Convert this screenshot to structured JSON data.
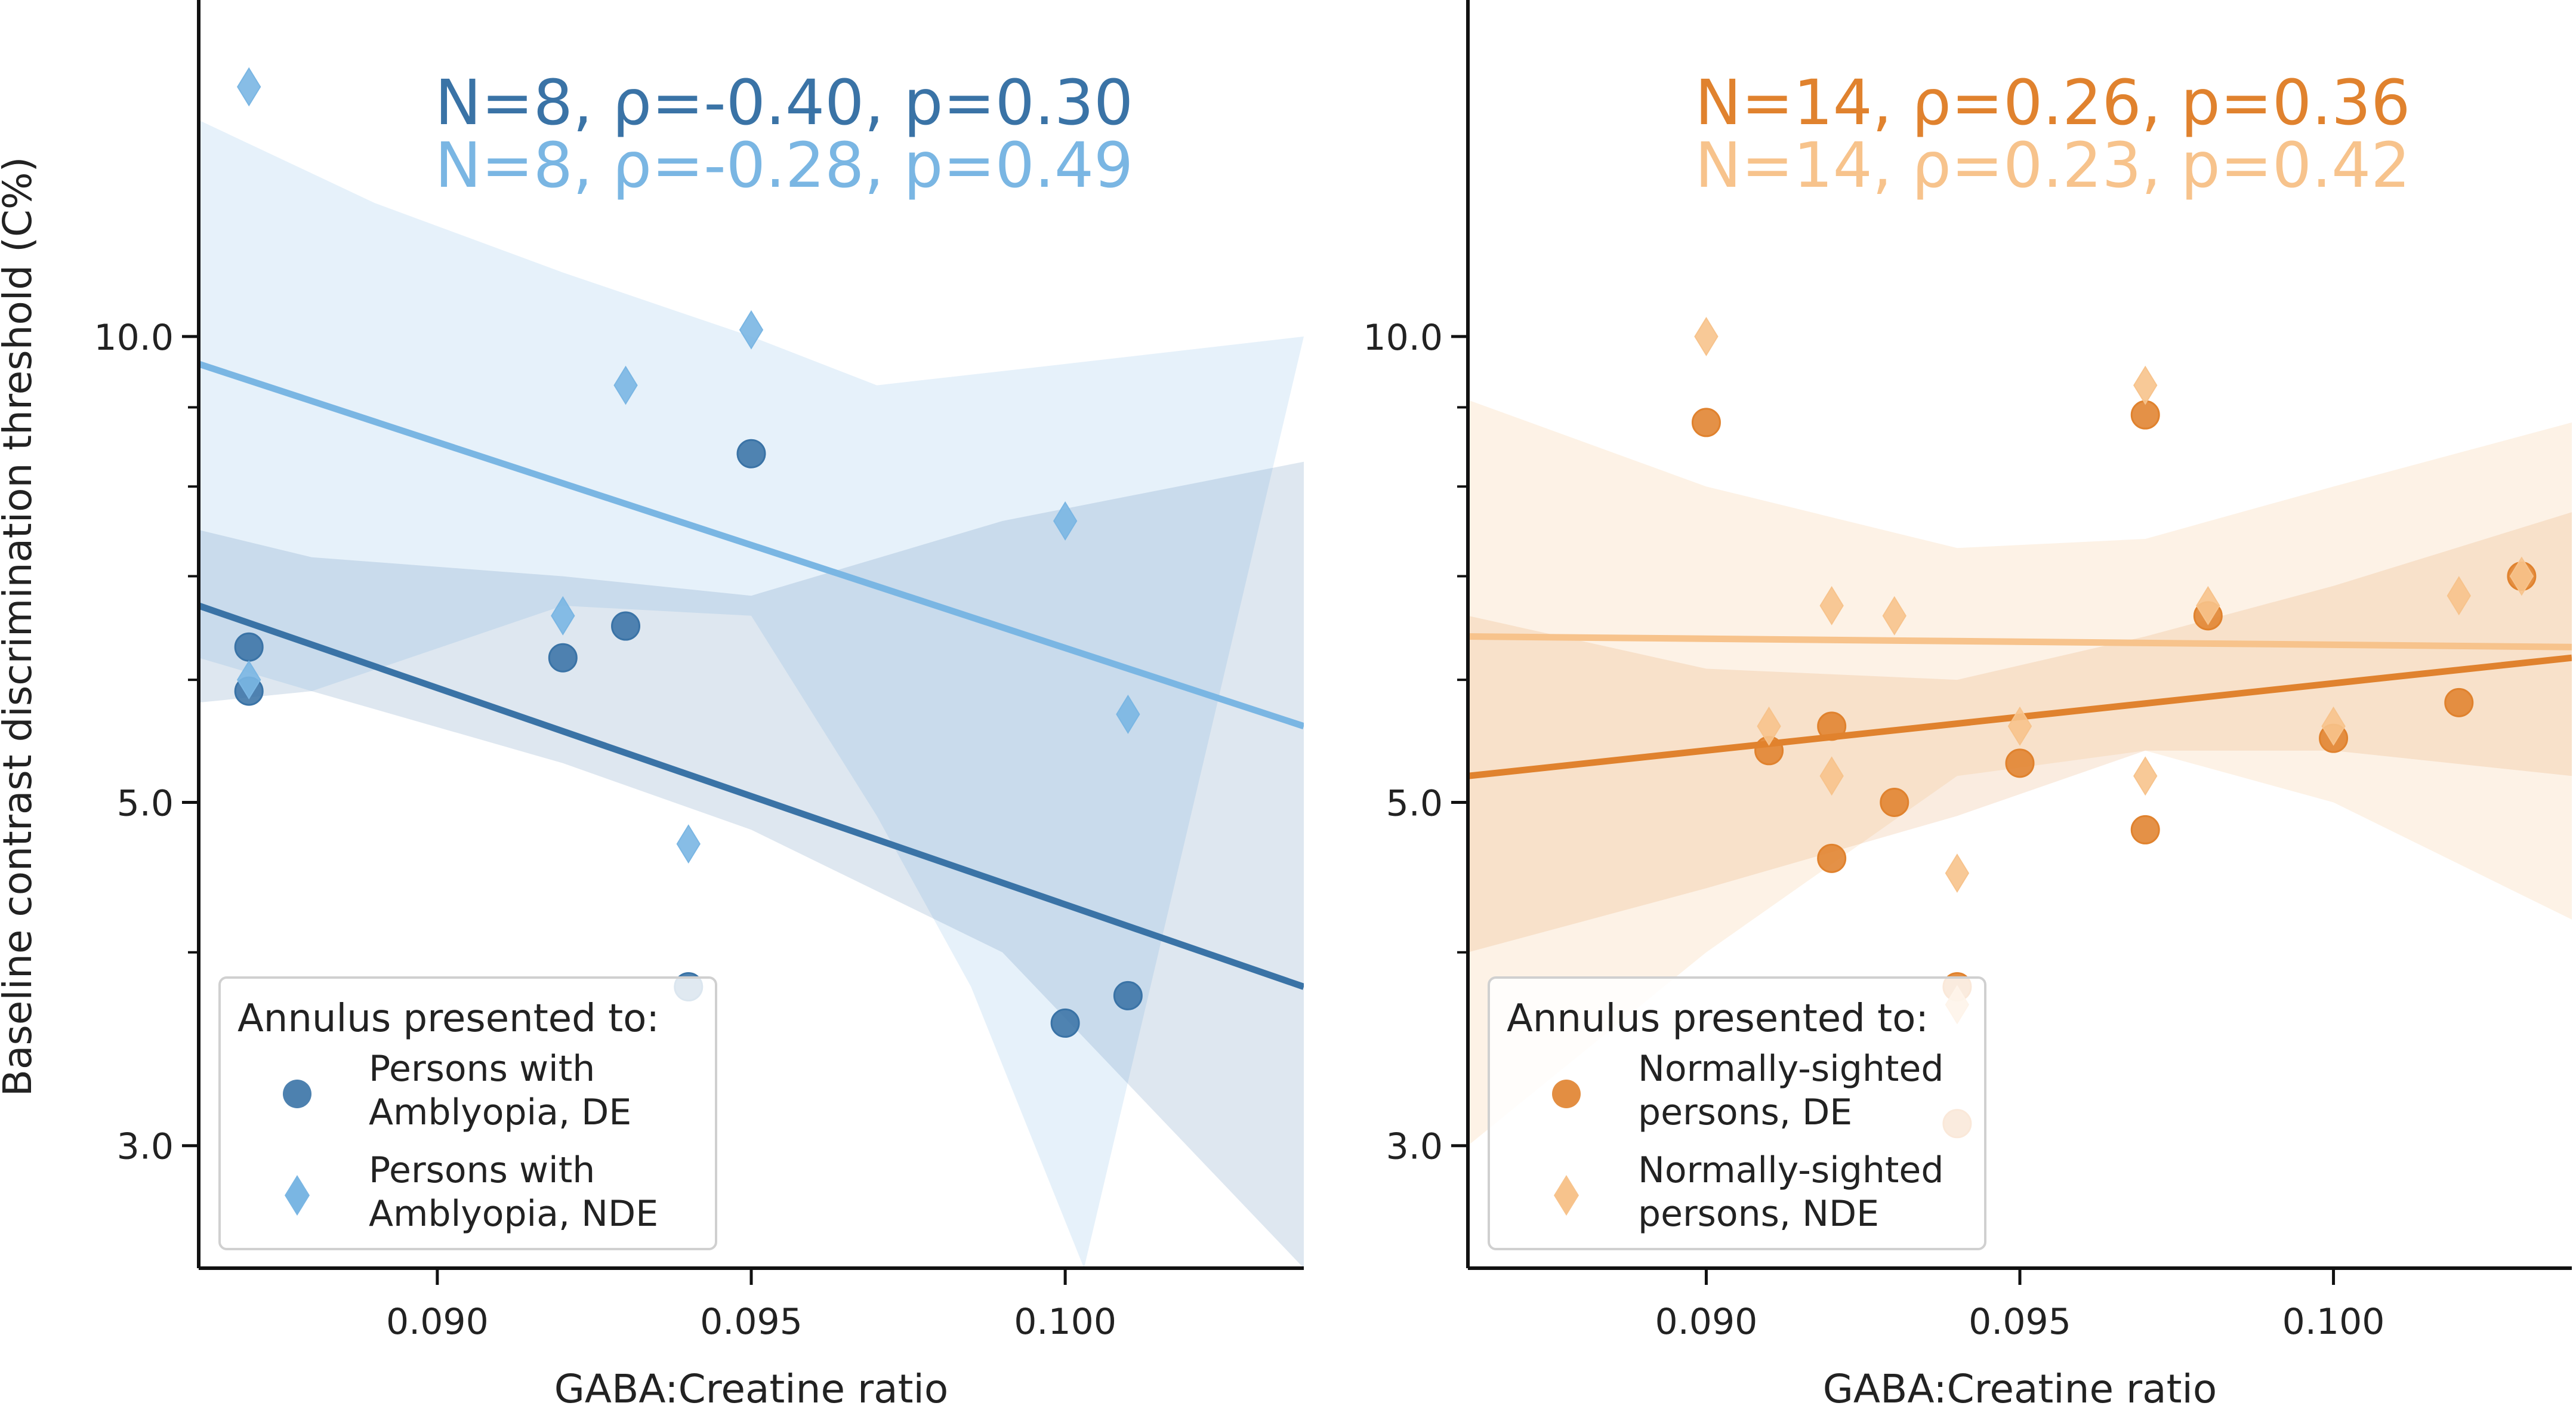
{
  "colors": {
    "de_left": "#3a73a6",
    "nde_left": "#7ab6e3",
    "de_right": "#e0822e",
    "nde_right": "#f7c38c",
    "axis": "#111111",
    "text": "#222222"
  },
  "figure": {
    "ylabel": "Baseline contrast discrimination threshold (C%)"
  },
  "chart_data": [
    {
      "type": "scatter",
      "id": "left",
      "xlabel": "GABA:Creatine ratio",
      "ylabel": "Baseline contrast discrimination threshold (C%)",
      "yscale": "log",
      "xlim": [
        0.0862,
        0.1038
      ],
      "ylim": [
        2.5,
        16.5
      ],
      "x_ticks": [
        0.09,
        0.095,
        0.1
      ],
      "x_tick_labels": [
        "0.090",
        "0.095",
        "0.100"
      ],
      "y_ticks": [
        3,
        5,
        10
      ],
      "y_tick_labels": [
        "3.0",
        "5.0",
        "10.0"
      ],
      "stats": [
        {
          "text": "N=8, ρ=-0.40, p=0.30",
          "series": "de"
        },
        {
          "text": "N=8, ρ=-0.28, p=0.49",
          "series": "nde"
        }
      ],
      "legend": {
        "title": "Annulus presented to:",
        "position": "lower-left",
        "entries": [
          {
            "series": "de",
            "marker": "circle",
            "lines": [
              "Persons with",
              "Amblyopia, DE"
            ]
          },
          {
            "series": "nde",
            "marker": "diamond",
            "lines": [
              "Persons with",
              "Amblyopia, NDE"
            ]
          }
        ]
      },
      "series": [
        {
          "name": "Persons with Amblyopia, DE",
          "key": "de",
          "marker": "circle",
          "x": [
            0.087,
            0.087,
            0.092,
            0.093,
            0.094,
            0.095,
            0.1,
            0.101
          ],
          "y": [
            6.3,
            5.9,
            6.2,
            6.5,
            3.8,
            8.4,
            3.6,
            3.75
          ],
          "fit": {
            "x": [
              0.0862,
              0.1038
            ],
            "y": [
              6.7,
              3.8
            ]
          },
          "ci_upper": [
            [
              0.0862,
              7.5
            ],
            [
              0.088,
              7.2
            ],
            [
              0.092,
              7.0
            ],
            [
              0.095,
              6.8
            ],
            [
              0.099,
              7.6
            ],
            [
              0.1038,
              8.3
            ]
          ],
          "ci_lower": [
            [
              0.0862,
              5.8
            ],
            [
              0.088,
              5.9
            ],
            [
              0.092,
              5.3
            ],
            [
              0.095,
              4.8
            ],
            [
              0.099,
              4.0
            ],
            [
              0.1038,
              2.5
            ]
          ]
        },
        {
          "name": "Persons with Amblyopia, NDE",
          "key": "nde",
          "marker": "diamond",
          "x": [
            0.087,
            0.087,
            0.092,
            0.093,
            0.094,
            0.095,
            0.1,
            0.101
          ],
          "y": [
            14.5,
            6.0,
            6.6,
            9.3,
            4.7,
            10.1,
            7.6,
            5.7
          ],
          "fit": {
            "x": [
              0.0862,
              0.1038
            ],
            "y": [
              9.6,
              5.6
            ]
          },
          "ci_upper": [
            [
              0.0862,
              13.8
            ],
            [
              0.089,
              12.2
            ],
            [
              0.092,
              11.0
            ],
            [
              0.095,
              10.0
            ],
            [
              0.097,
              9.3
            ],
            [
              0.1,
              9.6
            ],
            [
              0.1038,
              10.0
            ]
          ],
          "ci_lower": [
            [
              0.0862,
              6.2
            ],
            [
              0.088,
              5.9
            ],
            [
              0.092,
              6.7
            ],
            [
              0.095,
              6.6
            ],
            [
              0.097,
              4.9
            ],
            [
              0.0985,
              3.8
            ],
            [
              0.1003,
              2.5
            ]
          ]
        }
      ]
    },
    {
      "type": "scatter",
      "id": "right",
      "xlabel": "GABA:Creatine ratio",
      "ylabel": "",
      "yscale": "log",
      "xlim": [
        0.0862,
        0.1038
      ],
      "ylim": [
        2.5,
        16.5
      ],
      "x_ticks": [
        0.09,
        0.095,
        0.1
      ],
      "x_tick_labels": [
        "0.090",
        "0.095",
        "0.100"
      ],
      "y_ticks": [
        3,
        5,
        10
      ],
      "y_tick_labels": [
        "3.0",
        "5.0",
        "10.0"
      ],
      "stats": [
        {
          "text": "N=14, ρ=0.26, p=0.36",
          "series": "de"
        },
        {
          "text": "N=14, ρ=0.23, p=0.42",
          "series": "nde"
        }
      ],
      "legend": {
        "title": "Annulus presented to:",
        "position": "lower-left",
        "entries": [
          {
            "series": "de",
            "marker": "circle",
            "lines": [
              "Normally-sighted",
              "persons, DE"
            ]
          },
          {
            "series": "nde",
            "marker": "diamond",
            "lines": [
              "Normally-sighted",
              "persons, NDE"
            ]
          }
        ]
      },
      "series": [
        {
          "name": "Normally-sighted persons, DE",
          "key": "de",
          "marker": "circle",
          "x": [
            0.09,
            0.091,
            0.092,
            0.092,
            0.093,
            0.094,
            0.094,
            0.095,
            0.097,
            0.097,
            0.098,
            0.1,
            0.102,
            0.103
          ],
          "y": [
            8.8,
            5.4,
            5.6,
            4.6,
            5.0,
            3.8,
            3.1,
            5.3,
            8.9,
            4.8,
            6.6,
            5.5,
            5.8,
            7.0
          ],
          "fit": {
            "x": [
              0.0862,
              0.1038
            ],
            "y": [
              5.2,
              6.2
            ]
          },
          "ci_upper": [
            [
              0.0862,
              6.6
            ],
            [
              0.09,
              6.1
            ],
            [
              0.094,
              6.0
            ],
            [
              0.097,
              6.4
            ],
            [
              0.1,
              6.9
            ],
            [
              0.1038,
              7.7
            ]
          ],
          "ci_lower": [
            [
              0.0862,
              4.0
            ],
            [
              0.09,
              4.4
            ],
            [
              0.094,
              4.9
            ],
            [
              0.097,
              5.4
            ],
            [
              0.1,
              5.4
            ],
            [
              0.1038,
              5.2
            ]
          ]
        },
        {
          "name": "Normally-sighted persons, NDE",
          "key": "nde",
          "marker": "diamond",
          "x": [
            0.09,
            0.091,
            0.092,
            0.092,
            0.093,
            0.094,
            0.094,
            0.095,
            0.097,
            0.097,
            0.098,
            0.1,
            0.102,
            0.103
          ],
          "y": [
            10.0,
            5.6,
            6.7,
            5.2,
            6.6,
            4.5,
            3.7,
            5.6,
            9.3,
            5.2,
            6.7,
            5.6,
            6.8,
            7.0
          ],
          "fit": {
            "x": [
              0.0862,
              0.1038
            ],
            "y": [
              6.4,
              6.3
            ]
          },
          "ci_upper": [
            [
              0.0862,
              9.1
            ],
            [
              0.09,
              8.0
            ],
            [
              0.094,
              7.3
            ],
            [
              0.097,
              7.4
            ],
            [
              0.1,
              8.0
            ],
            [
              0.1038,
              8.8
            ]
          ],
          "ci_lower": [
            [
              0.0862,
              3.0
            ],
            [
              0.09,
              4.0
            ],
            [
              0.094,
              5.2
            ],
            [
              0.097,
              5.4
            ],
            [
              0.1,
              5.0
            ],
            [
              0.1038,
              4.2
            ]
          ]
        }
      ]
    }
  ]
}
